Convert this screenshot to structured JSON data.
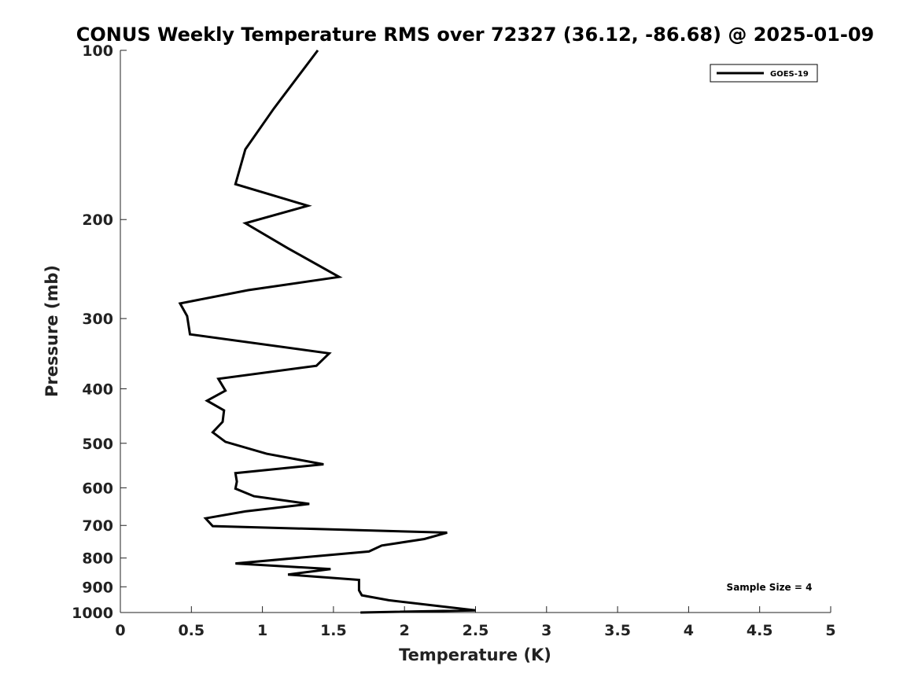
{
  "chart_data": {
    "type": "line",
    "title": "CONUS Weekly Temperature RMS over 72327 (36.12, -86.68) @ 2025-01-09",
    "xlabel": "Temperature (K)",
    "ylabel": "Pressure (mb)",
    "xlim": [
      0,
      5
    ],
    "ylim": [
      1000,
      100
    ],
    "y_scale": "log",
    "grid": false,
    "legend_position": "top-right",
    "xticks": [
      "0",
      "0.5",
      "1",
      "1.5",
      "2",
      "2.5",
      "3",
      "3.5",
      "4",
      "4.5",
      "5"
    ],
    "yticks": [
      "100",
      "200",
      "300",
      "400",
      "500",
      "600",
      "700",
      "800",
      "900",
      "1000"
    ],
    "series": [
      {
        "name": "GOES-19",
        "color": "#000000",
        "points": [
          [
            1.39,
            100
          ],
          [
            1.08,
            127
          ],
          [
            0.88,
            150
          ],
          [
            0.81,
            173
          ],
          [
            1.32,
            189
          ],
          [
            0.88,
            203
          ],
          [
            1.18,
            225
          ],
          [
            1.54,
            253
          ],
          [
            0.9,
            267
          ],
          [
            0.42,
            282
          ],
          [
            0.47,
            297
          ],
          [
            0.49,
            320
          ],
          [
            1.47,
            346
          ],
          [
            1.38,
            364
          ],
          [
            0.69,
            384
          ],
          [
            0.74,
            403
          ],
          [
            0.61,
            420
          ],
          [
            0.73,
            437
          ],
          [
            0.72,
            458
          ],
          [
            0.65,
            478
          ],
          [
            0.74,
            497
          ],
          [
            1.03,
            522
          ],
          [
            1.43,
            545
          ],
          [
            0.81,
            565
          ],
          [
            0.82,
            585
          ],
          [
            0.81,
            602
          ],
          [
            0.94,
            621
          ],
          [
            1.33,
            641
          ],
          [
            0.88,
            661
          ],
          [
            0.6,
            680
          ],
          [
            0.65,
            702
          ],
          [
            2.3,
            721
          ],
          [
            2.14,
            740
          ],
          [
            1.84,
            760
          ],
          [
            1.75,
            779
          ],
          [
            0.81,
            818
          ],
          [
            1.48,
            837
          ],
          [
            1.18,
            856
          ],
          [
            1.68,
            875
          ],
          [
            1.68,
            913
          ],
          [
            1.7,
            932
          ],
          [
            1.89,
            951
          ],
          [
            2.5,
            991
          ],
          [
            1.69,
            1000
          ]
        ]
      }
    ],
    "annotations": [
      "Sample Size = 4"
    ]
  }
}
